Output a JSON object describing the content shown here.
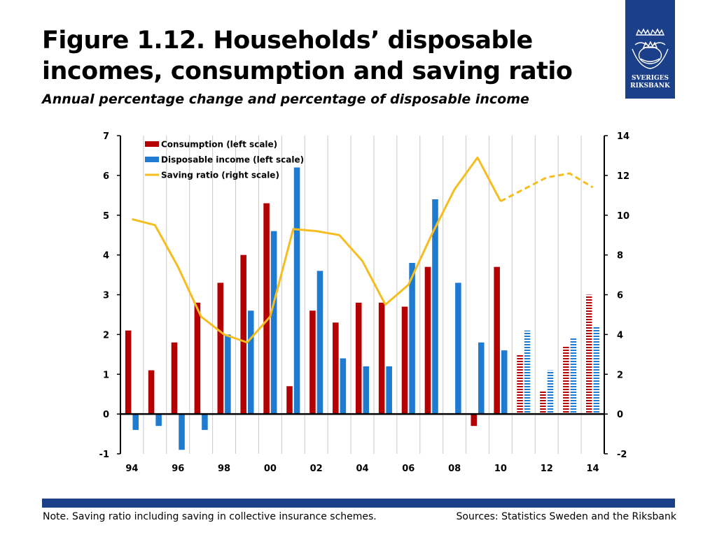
{
  "header": {
    "title": "Figure 1.12. Households’ disposable incomes, consumption and saving ratio",
    "subtitle": "Annual percentage change and percentage of disposable income"
  },
  "logo": {
    "line1": "SVERIGES",
    "line2": "RIKSBANK",
    "icon": "riksbank-crown-emblem-icon"
  },
  "footer": {
    "note": "Note. Saving ratio including saving in collective insurance schemes.",
    "sources": "Sources: Statistics Sweden and the Riksbank"
  },
  "colors": {
    "consumption": "#b40000",
    "income": "#1f7bd0",
    "saving": "#f5bd1f",
    "brand": "#1c3f8a"
  },
  "chart_data": {
    "type": "bar",
    "title": "",
    "x": [
      1994,
      1995,
      1996,
      1997,
      1998,
      1999,
      2000,
      2001,
      2002,
      2003,
      2004,
      2005,
      2006,
      2007,
      2008,
      2009,
      2010,
      2011,
      2012,
      2013,
      2014
    ],
    "x_tick_labels": [
      "94",
      "96",
      "98",
      "00",
      "02",
      "04",
      "06",
      "08",
      "10",
      "12",
      "14"
    ],
    "x_tick_years": [
      1994,
      1996,
      1998,
      2000,
      2002,
      2004,
      2006,
      2008,
      2010,
      2012,
      2014
    ],
    "forecast_from": 2011,
    "left_axis": {
      "ylim": [
        -1,
        7
      ],
      "ticks": [
        "-1",
        "0",
        "1",
        "2",
        "3",
        "4",
        "5",
        "6",
        "7"
      ]
    },
    "right_axis": {
      "ylim": [
        -2,
        14
      ],
      "ticks": [
        "-2",
        "0",
        "2",
        "4",
        "6",
        "8",
        "10",
        "12",
        "14"
      ]
    },
    "grid": "vertical",
    "legend_position": "top-left",
    "series": [
      {
        "name": "Consumption (left scale)",
        "kind": "bar",
        "axis": "left",
        "values": [
          2.1,
          1.1,
          1.8,
          2.8,
          3.3,
          4.0,
          5.3,
          0.7,
          2.6,
          2.3,
          2.8,
          2.8,
          2.7,
          3.7,
          0.0,
          -0.3,
          3.7,
          1.5,
          0.6,
          1.7,
          3.0
        ]
      },
      {
        "name": "Disposable income (left scale)",
        "kind": "bar",
        "axis": "left",
        "values": [
          -0.4,
          -0.3,
          -0.9,
          -0.4,
          2.0,
          2.6,
          4.6,
          6.2,
          3.6,
          1.4,
          1.2,
          1.2,
          3.8,
          5.4,
          3.3,
          1.8,
          1.6,
          2.1,
          1.1,
          1.9,
          2.2
        ]
      },
      {
        "name": "Saving ratio (right scale)",
        "kind": "line",
        "axis": "right",
        "values": [
          9.8,
          9.5,
          7.4,
          4.9,
          4.0,
          3.6,
          4.9,
          9.3,
          9.2,
          9.0,
          7.7,
          5.5,
          6.5,
          9.0,
          11.3,
          12.9,
          10.7,
          11.3,
          11.9,
          12.1,
          11.4
        ]
      }
    ]
  }
}
